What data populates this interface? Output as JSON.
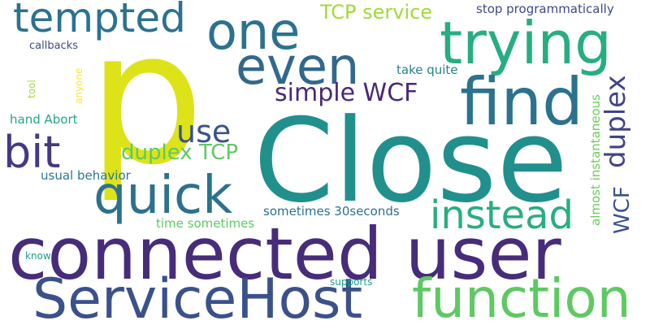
{
  "words": [
    {
      "text": "Close",
      "color": "#21908d"
    },
    {
      "text": "connected user",
      "color": "#472c7a"
    },
    {
      "text": "p",
      "color": "#dde318"
    },
    {
      "text": "ServiceHost",
      "color": "#3b518b"
    },
    {
      "text": "function",
      "color": "#5ec962"
    },
    {
      "text": "quick",
      "color": "#2c728e"
    },
    {
      "text": "trying",
      "color": "#27ad81"
    },
    {
      "text": "even",
      "color": "#31688e"
    },
    {
      "text": "find",
      "color": "#2c728e"
    },
    {
      "text": "one",
      "color": "#2c728e"
    },
    {
      "text": "bit",
      "color": "#443983"
    },
    {
      "text": "tempted",
      "color": "#2c728e"
    },
    {
      "text": "instead",
      "color": "#28ae80"
    },
    {
      "text": "use",
      "color": "#3b528b"
    },
    {
      "text": "duplex",
      "color": "#414487"
    },
    {
      "text": "simple WCF",
      "color": "#482979"
    },
    {
      "text": "duplex TCP",
      "color": "#5ec962"
    },
    {
      "text": "WCF",
      "color": "#3b528b"
    },
    {
      "text": "TCP service",
      "color": "#a0da39"
    },
    {
      "text": "stop programmatically",
      "color": "#3e4989"
    },
    {
      "text": "sometimes 30seconds",
      "color": "#2d708e"
    },
    {
      "text": "hand Abort",
      "color": "#22a884"
    },
    {
      "text": "usual behavior",
      "color": "#2a788e"
    },
    {
      "text": "take quite",
      "color": "#26828e"
    },
    {
      "text": "almost instantaneous",
      "color": "#6ccd5a"
    },
    {
      "text": "time sometimes",
      "color": "#5ec962"
    },
    {
      "text": "callbacks",
      "color": "#3e4989"
    },
    {
      "text": "tool",
      "color": "#a5db36"
    },
    {
      "text": "anyone",
      "color": "#fde725"
    },
    {
      "text": "know",
      "color": "#1f9e89"
    },
    {
      "text": "supports",
      "color": "#1fa188"
    }
  ]
}
